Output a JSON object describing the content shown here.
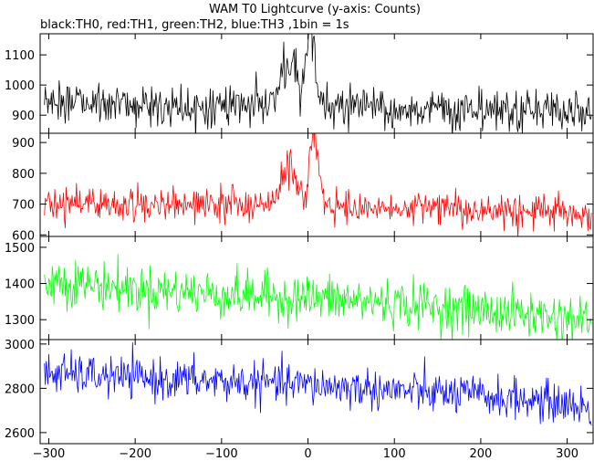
{
  "chart_data": {
    "type": "line",
    "title": "WAM T0 Lightcurve (y-axis: Counts)",
    "subtitle": "black:TH0, red:TH1, green:TH2, blue:TH3 ,1bin = 1s",
    "xlabel": "",
    "x_range": [
      -310,
      330
    ],
    "x_ticks": [
      -300,
      -200,
      -100,
      0,
      100,
      200,
      300
    ],
    "x_tick_labels": [
      "−300",
      "−200",
      "−100",
      "0",
      "100",
      "200",
      "300"
    ],
    "bin_seconds": 1,
    "grid": false,
    "panels": [
      {
        "name": "TH0",
        "color": "#000000",
        "ylim": [
          840,
          1170
        ],
        "y_ticks": [
          900,
          1000,
          1100
        ],
        "y_tick_labels": [
          "900",
          "1000",
          "1100"
        ],
        "baseline": [
          [
            -305,
            945
          ],
          [
            -200,
            935
          ],
          [
            -100,
            930
          ],
          [
            0,
            928
          ],
          [
            100,
            920
          ],
          [
            200,
            915
          ],
          [
            300,
            910
          ],
          [
            328,
            908
          ]
        ],
        "noise_sd": 35,
        "features": [
          {
            "center": -22,
            "width": 9,
            "amp": 140
          },
          {
            "center": 2,
            "width": 3,
            "amp": 150
          },
          {
            "center": 6,
            "width": 4,
            "amp": 170
          },
          {
            "center": -2,
            "width": 4,
            "amp": 60
          }
        ]
      },
      {
        "name": "TH1",
        "color": "#ff0000",
        "ylim": [
          595,
          930
        ],
        "y_ticks": [
          600,
          700,
          800,
          900
        ],
        "y_tick_labels": [
          "600",
          "700",
          "800",
          "900"
        ],
        "baseline": [
          [
            -305,
            705
          ],
          [
            -200,
            700
          ],
          [
            -100,
            695
          ],
          [
            0,
            692
          ],
          [
            100,
            685
          ],
          [
            200,
            680
          ],
          [
            300,
            675
          ],
          [
            328,
            665
          ]
        ],
        "noise_sd": 27,
        "features": [
          {
            "center": -22,
            "width": 8,
            "amp": 120
          },
          {
            "center": 6,
            "width": 4,
            "amp": 180
          },
          {
            "center": 12,
            "width": 6,
            "amp": 80
          }
        ]
      },
      {
        "name": "TH2",
        "color": "#00ff00",
        "ylim": [
          1245,
          1530
        ],
        "y_ticks": [
          1300,
          1400,
          1500
        ],
        "y_tick_labels": [
          "1300",
          "1400",
          "1500"
        ],
        "baseline": [
          [
            -305,
            1410
          ],
          [
            -200,
            1385
          ],
          [
            -100,
            1370
          ],
          [
            0,
            1360
          ],
          [
            100,
            1345
          ],
          [
            200,
            1325
          ],
          [
            300,
            1305
          ],
          [
            328,
            1295
          ]
        ],
        "noise_sd": 32,
        "features": []
      },
      {
        "name": "TH3",
        "color": "#0000ff",
        "ylim": [
          2550,
          3020
        ],
        "y_ticks": [
          2600,
          2800,
          3000
        ],
        "y_tick_labels": [
          "2600",
          "2800",
          "3000"
        ],
        "baseline": [
          [
            -305,
            2870
          ],
          [
            -200,
            2845
          ],
          [
            -100,
            2830
          ],
          [
            0,
            2815
          ],
          [
            100,
            2790
          ],
          [
            200,
            2765
          ],
          [
            300,
            2730
          ],
          [
            328,
            2700
          ]
        ],
        "noise_sd": 45,
        "features": []
      }
    ]
  }
}
